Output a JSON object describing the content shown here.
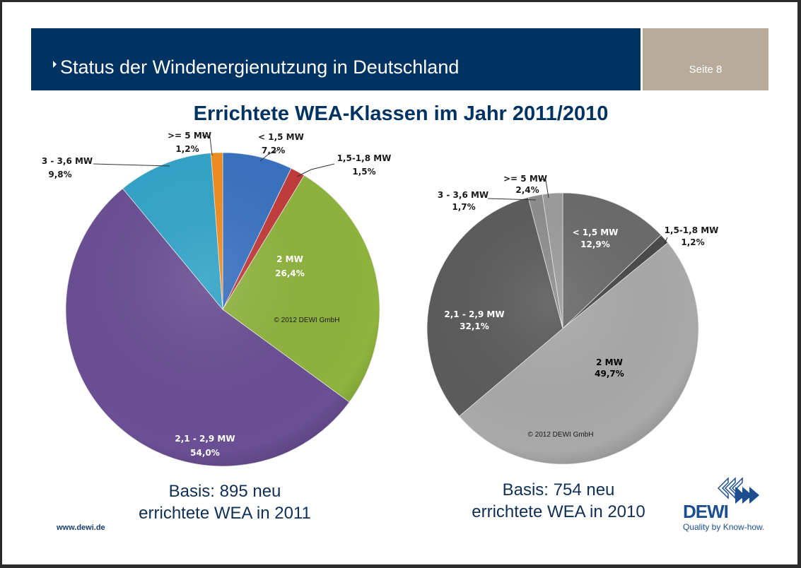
{
  "header": {
    "title": "Status der Windenergienutzung in Deutschland",
    "page_label": "Seite 8"
  },
  "colors": {
    "header_bg": "#003361",
    "page_box_bg": "#b6ac99",
    "title_color": "#003361"
  },
  "main_title": "Errichtete WEA-Klassen im Jahr 2011/2010",
  "chart_data": [
    {
      "type": "pie",
      "title": "Errichtete WEA-Klassen 2011",
      "start_angle": "12 o'clock, clockwise",
      "slices": [
        {
          "label": "< 1,5 MW",
          "value": 7.2,
          "value_label": "7,2%",
          "color": "#3a72c0",
          "label_pos": "outside"
        },
        {
          "label": "1,5-1,8 MW",
          "value": 1.5,
          "value_label": "1,5%",
          "color": "#c23b3b",
          "label_pos": "outside"
        },
        {
          "label": "2 MW",
          "value": 26.4,
          "value_label": "26,4%",
          "color": "#8fb33e",
          "label_pos": "inside"
        },
        {
          "label": "2,1 - 2,9 MW",
          "value": 54.0,
          "value_label": "54,0%",
          "color": "#6a4f94",
          "label_pos": "inside"
        },
        {
          "label": "3 - 3,6 MW",
          "value": 9.8,
          "value_label": "9,8%",
          "color": "#33a4c8",
          "label_pos": "outside"
        },
        {
          "label": ">= 5 MW",
          "value": 1.2,
          "value_label": "1,2%",
          "color": "#f08c1e",
          "label_pos": "outside"
        }
      ],
      "watermark": "© 2012 DEWI GmbH",
      "caption_line1": "Basis: 895 neu",
      "caption_line2": "errichtete WEA in 2011"
    },
    {
      "type": "pie",
      "title": "Errichtete WEA-Klassen 2010",
      "start_angle": "12 o'clock, clockwise",
      "slices": [
        {
          "label": "< 1,5 MW",
          "value": 12.9,
          "value_label": "12,9%",
          "color": "#6b6b6b",
          "label_pos": "inside"
        },
        {
          "label": "1,5-1,8 MW",
          "value": 1.2,
          "value_label": "1,2%",
          "color": "#4a4a4a",
          "label_pos": "outside"
        },
        {
          "label": "2 MW",
          "value": 49.7,
          "value_label": "49,7%",
          "color": "#a9a9a9",
          "label_pos": "inside"
        },
        {
          "label": "2,1 - 2,9 MW",
          "value": 32.1,
          "value_label": "32,1%",
          "color": "#5c5c5c",
          "label_pos": "inside"
        },
        {
          "label": "3 - 3,6 MW",
          "value": 1.7,
          "value_label": "1,7%",
          "color": "#8e8e8e",
          "label_pos": "outside"
        },
        {
          "label": ">= 5 MW",
          "value": 2.4,
          "value_label": "2,4%",
          "color": "#9c9c9c",
          "label_pos": "outside"
        }
      ],
      "watermark": "© 2012 DEWI GmbH",
      "caption_line1": "Basis: 754 neu",
      "caption_line2": "errichtete WEA in 2010"
    }
  ],
  "footer": {
    "website": "www.dewi.de",
    "logo_word": "DEWI",
    "logo_tagline": "Quality by Know-how."
  }
}
